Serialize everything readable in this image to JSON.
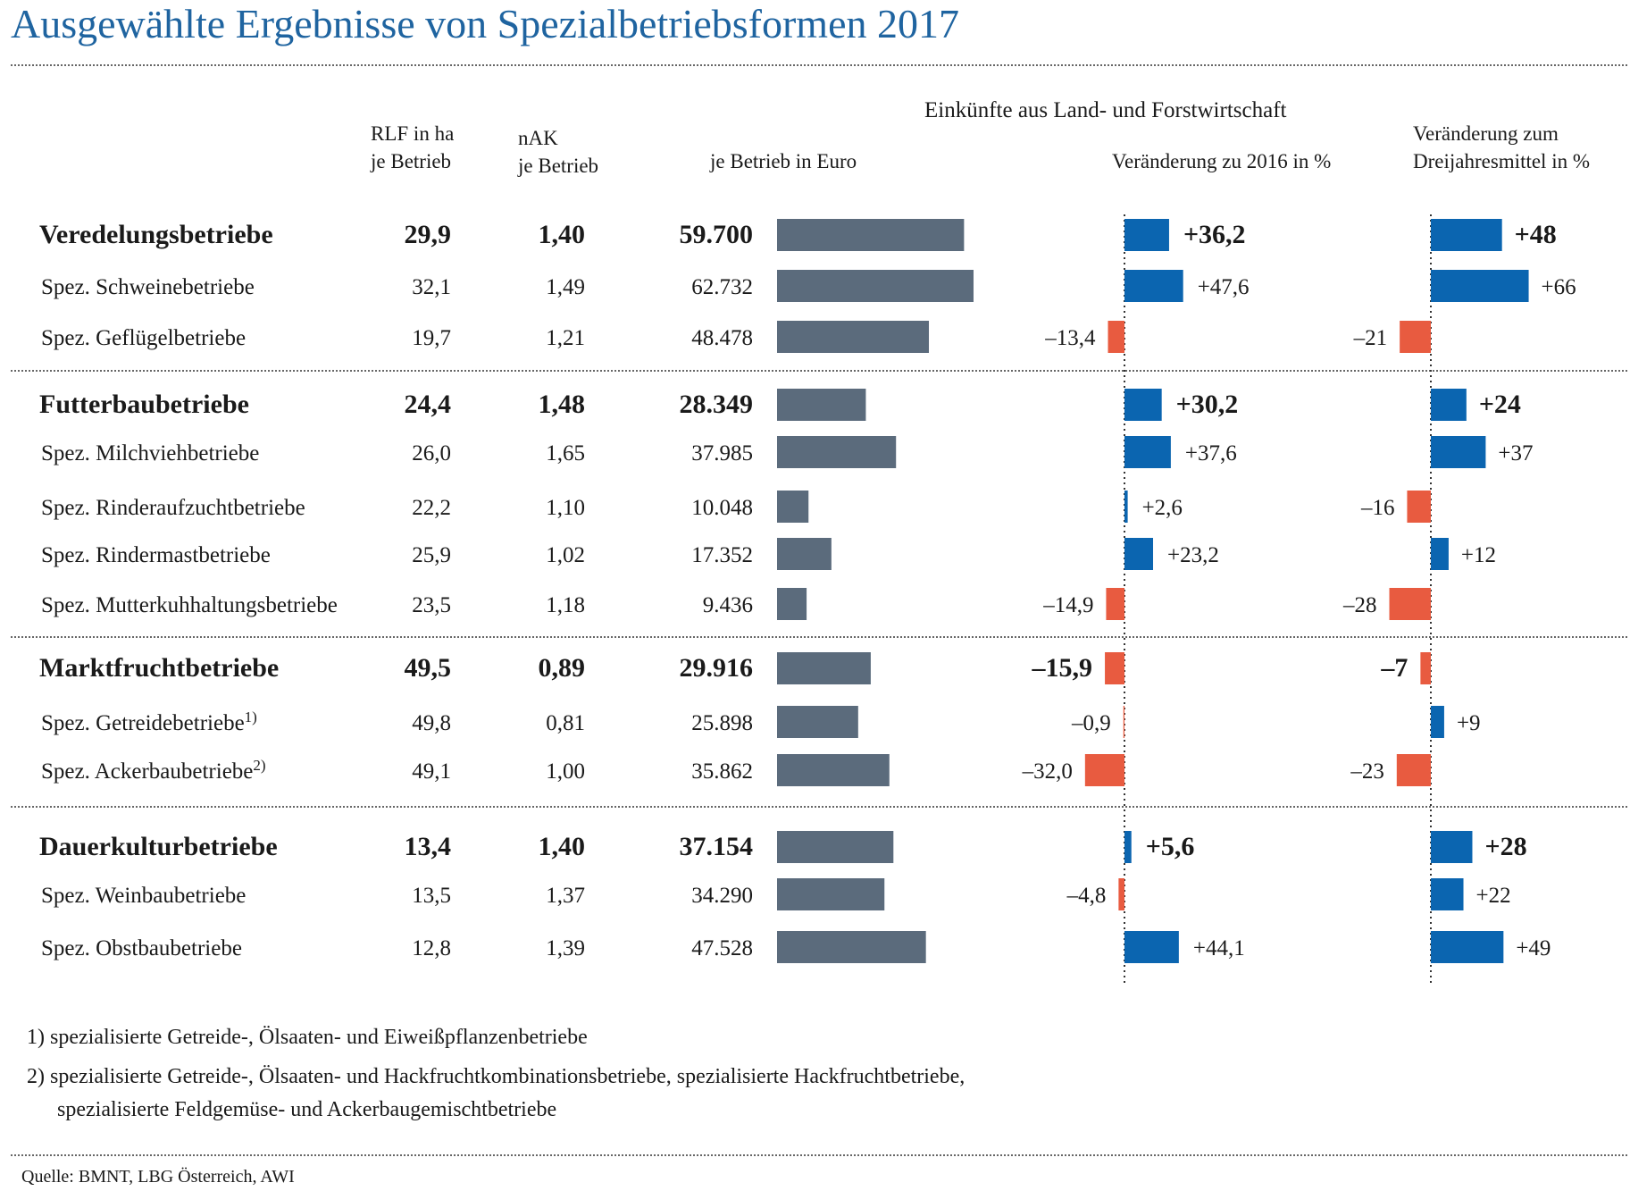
{
  "page": {
    "title": "Ausgewählte Ergebnisse von Spezialbetriebsformen 2017",
    "source": "Quelle: BMNT, LBG Österreich, AWI",
    "footnotes": [
      {
        "mark": "1)",
        "lines": [
          "spezialisierte Getreide-, Ölsaaten- und Eiweißpflanzenbetriebe"
        ]
      },
      {
        "mark": "2)",
        "lines": [
          "spezialisierte Getreide-, Ölsaaten- und Hackfruchtkombinationsbetriebe, spezialisierte Hackfruchtbetriebe,",
          "spezialisierte Feldgemüse- und Ackerbaugemischtbetriebe"
        ]
      }
    ]
  },
  "headers": {
    "rlf": [
      "RLF in ha",
      "je Betrieb"
    ],
    "nak": [
      "nAK",
      "je Betrieb"
    ],
    "group": "Einkünfte aus Land- und Forstwirtschaft",
    "euro": "je Betrieb in Euro",
    "change2016": "Veränderung zu 2016 in %",
    "change3y": [
      "Veränderung zum",
      "Dreijahresmittel in %"
    ]
  },
  "colors": {
    "title": "#1f64a0",
    "income_bar": "#5b6b7c",
    "positive": "#0b65b0",
    "negative": "#e85b40"
  },
  "chart_data": {
    "type": "table",
    "columns": [
      "RLF in ha je Betrieb",
      "nAK je Betrieb",
      "je Betrieb in Euro",
      "Veränderung zu 2016 in %",
      "Veränderung zum Dreijahresmittel in %"
    ],
    "rows": [
      {
        "label": "Veredelungsbetriebe",
        "sup": "",
        "bold": true,
        "rlf": "29,9",
        "nak": "1,40",
        "euro_label": "59.700",
        "euro": 59700,
        "ch_label": "+36,2",
        "ch": 36.2,
        "ch3_label": "+48",
        "ch3": 48
      },
      {
        "label": "Spez. Schweinebetriebe",
        "sup": "",
        "bold": false,
        "rlf": "32,1",
        "nak": "1,49",
        "euro_label": "62.732",
        "euro": 62732,
        "ch_label": "+47,6",
        "ch": 47.6,
        "ch3_label": "+66",
        "ch3": 66
      },
      {
        "label": "Spez. Geflügelbetriebe",
        "sup": "",
        "bold": false,
        "rlf": "19,7",
        "nak": "1,21",
        "euro_label": "48.478",
        "euro": 48478,
        "ch_label": "–13,4",
        "ch": -13.4,
        "ch3_label": "–21",
        "ch3": -21
      },
      {
        "label": "Futterbaubetriebe",
        "sup": "",
        "bold": true,
        "rlf": "24,4",
        "nak": "1,48",
        "euro_label": "28.349",
        "euro": 28349,
        "ch_label": "+30,2",
        "ch": 30.2,
        "ch3_label": "+24",
        "ch3": 24
      },
      {
        "label": "Spez. Milchviehbetriebe",
        "sup": "",
        "bold": false,
        "rlf": "26,0",
        "nak": "1,65",
        "euro_label": "37.985",
        "euro": 37985,
        "ch_label": "+37,6",
        "ch": 37.6,
        "ch3_label": "+37",
        "ch3": 37
      },
      {
        "label": "Spez. Rinderaufzuchtbetriebe",
        "sup": "",
        "bold": false,
        "rlf": "22,2",
        "nak": "1,10",
        "euro_label": "10.048",
        "euro": 10048,
        "ch_label": "+2,6",
        "ch": 2.6,
        "ch3_label": "–16",
        "ch3": -16
      },
      {
        "label": "Spez. Rindermastbetriebe",
        "sup": "",
        "bold": false,
        "rlf": "25,9",
        "nak": "1,02",
        "euro_label": "17.352",
        "euro": 17352,
        "ch_label": "+23,2",
        "ch": 23.2,
        "ch3_label": "+12",
        "ch3": 12
      },
      {
        "label": "Spez. Mutterkuhhaltungsbetriebe",
        "sup": "",
        "bold": false,
        "rlf": "23,5",
        "nak": "1,18",
        "euro_label": "9.436",
        "euro": 9436,
        "ch_label": "–14,9",
        "ch": -14.9,
        "ch3_label": "–28",
        "ch3": -28
      },
      {
        "label": "Marktfruchtbetriebe",
        "sup": "",
        "bold": true,
        "rlf": "49,5",
        "nak": "0,89",
        "euro_label": "29.916",
        "euro": 29916,
        "ch_label": "–15,9",
        "ch": -15.9,
        "ch3_label": "–7",
        "ch3": -7
      },
      {
        "label": "Spez. Getreidebetriebe",
        "sup": "1)",
        "bold": false,
        "rlf": "49,8",
        "nak": "0,81",
        "euro_label": "25.898",
        "euro": 25898,
        "ch_label": "–0,9",
        "ch": -0.9,
        "ch3_label": "+9",
        "ch3": 9
      },
      {
        "label": "Spez. Ackerbaubetriebe",
        "sup": "2)",
        "bold": false,
        "rlf": "49,1",
        "nak": "1,00",
        "euro_label": "35.862",
        "euro": 35862,
        "ch_label": "–32,0",
        "ch": -32.0,
        "ch3_label": "–23",
        "ch3": -23
      },
      {
        "label": "Dauerkulturbetriebe",
        "sup": "",
        "bold": true,
        "rlf": "13,4",
        "nak": "1,40",
        "euro_label": "37.154",
        "euro": 37154,
        "ch_label": "+5,6",
        "ch": 5.6,
        "ch3_label": "+28",
        "ch3": 28
      },
      {
        "label": "Spez. Weinbaubetriebe",
        "sup": "",
        "bold": false,
        "rlf": "13,5",
        "nak": "1,37",
        "euro_label": "34.290",
        "euro": 34290,
        "ch_label": "–4,8",
        "ch": -4.8,
        "ch3_label": "+22",
        "ch3": 22
      },
      {
        "label": "Spez. Obstbaubetriebe",
        "sup": "",
        "bold": false,
        "rlf": "12,8",
        "nak": "1,39",
        "euro_label": "47.528",
        "euro": 47528,
        "ch_label": "+44,1",
        "ch": 44.1,
        "ch3_label": "+49",
        "ch3": 49
      }
    ]
  }
}
